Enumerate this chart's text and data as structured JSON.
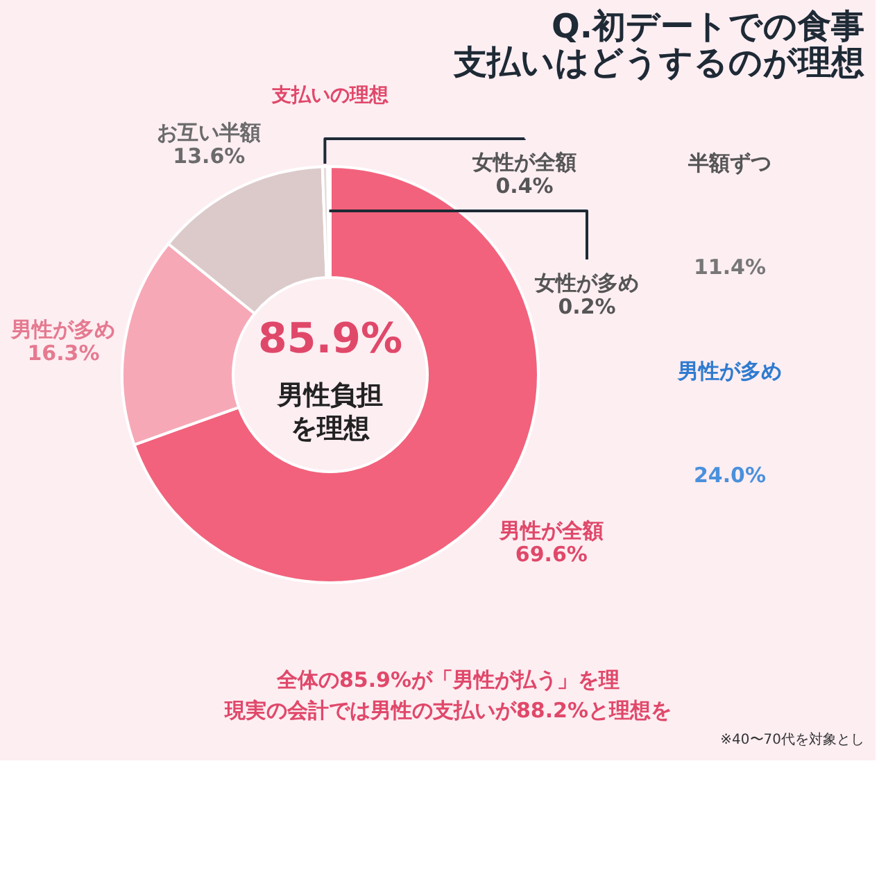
{
  "chart_data": [
    {
      "type": "donut",
      "title": "Q.初デートでの食事支払いはどうするのが理想",
      "subtitle": "支払いの理想",
      "categories": [
        "男性が全額",
        "男性が多め",
        "お互い半額",
        "女性が全額",
        "女性が多め"
      ],
      "values": [
        69.6,
        16.3,
        13.6,
        0.4,
        0.2
      ],
      "value_labels": [
        "69.6%",
        "16.3%",
        "13.6%",
        "0.4%",
        "0.2%"
      ],
      "colors": [
        "#f2627c",
        "#f7a8b6",
        "#dccaca",
        "#e6dada",
        "#efe6e6"
      ],
      "annotations": [
        "85.9%",
        "男性負担を理想",
        "全体の85.9%が「男性が払う」を理",
        "現実の会計では男性の支払いが88.2%と理想を",
        "※40〜70代を対象とし"
      ]
    },
    {
      "type": "other",
      "annotations": [
        "半額ずつ",
        "11.4%",
        "男性が多め",
        "24.0%"
      ]
    }
  ]
}
